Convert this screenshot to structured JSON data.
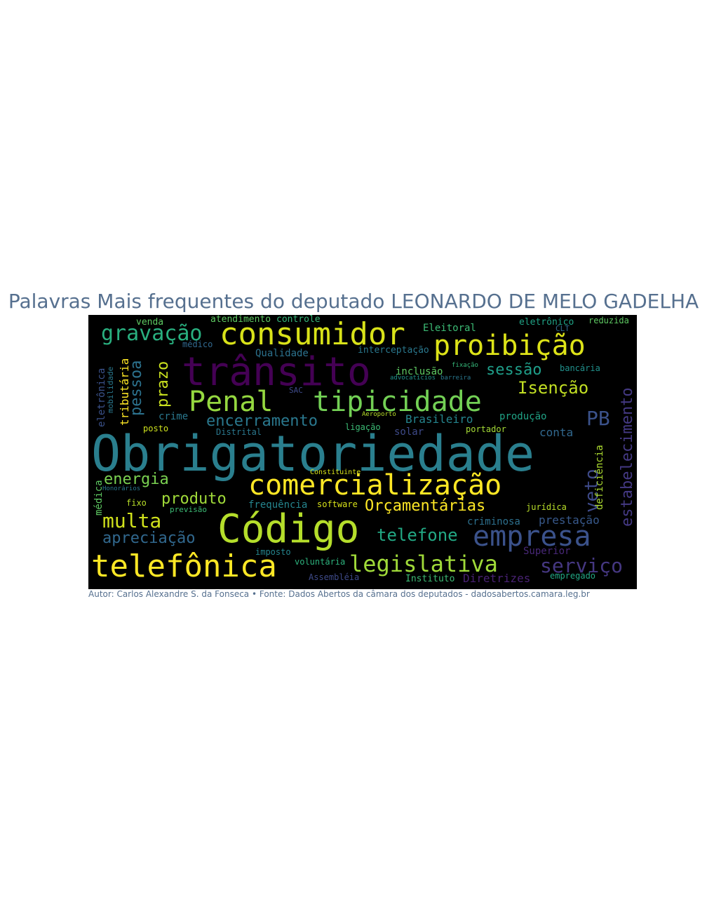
{
  "title": "Palavras Mais frequentes do deputado LEONARDO DE MELO GADELHA",
  "footer": "Autor: Carlos Alexandre S. da Fonseca • Fonte: Dados Abertos da câmara dos deputados - dadosabertos.camara.leg.br",
  "colors": {
    "title": "#56708f",
    "background": "#000000",
    "palette": "viridis"
  },
  "words": [
    {
      "text": "Obrigatoriedade",
      "color": "#2a7f8e"
    },
    {
      "text": "trânsito",
      "color": "#440154"
    },
    {
      "text": "Código",
      "color": "#b5de2b"
    },
    {
      "text": "comercialização",
      "color": "#fde725"
    },
    {
      "text": "telefônica",
      "color": "#fde725"
    },
    {
      "text": "consumidor",
      "color": "#d8e219"
    },
    {
      "text": "proibição",
      "color": "#dde318"
    },
    {
      "text": "tipicidade",
      "color": "#73d055"
    },
    {
      "text": "Penal",
      "color": "#95d840"
    },
    {
      "text": "empresa",
      "color": "#3b528b"
    },
    {
      "text": "legislativa",
      "color": "#a0da39"
    },
    {
      "text": "estabelecimento",
      "color": "#443983"
    },
    {
      "text": "gravação",
      "color": "#29af7f"
    },
    {
      "text": "encerramento",
      "color": "#2a788e"
    },
    {
      "text": "serviço",
      "color": "#453781"
    },
    {
      "text": "Orçamentárias",
      "color": "#fde725"
    },
    {
      "text": "multa",
      "color": "#d0e11c"
    },
    {
      "text": "apreciação",
      "color": "#31688e"
    },
    {
      "text": "telefone",
      "color": "#22a884"
    },
    {
      "text": "energia",
      "color": "#7ad151"
    },
    {
      "text": "produto",
      "color": "#a0da39"
    },
    {
      "text": "veto",
      "color": "#3e4a89"
    },
    {
      "text": "PB",
      "color": "#3b528b"
    },
    {
      "text": "Isenção",
      "color": "#c2df23"
    },
    {
      "text": "sessão",
      "color": "#1f9e89"
    },
    {
      "text": "pessoa",
      "color": "#2c728e"
    },
    {
      "text": "prazo",
      "color": "#cae11f"
    },
    {
      "text": "tributária",
      "color": "#fde725"
    },
    {
      "text": "deficiência",
      "color": "#addc30"
    },
    {
      "text": "Brasileiro",
      "color": "#25858e"
    },
    {
      "text": "prestação",
      "color": "#38598c"
    },
    {
      "text": "Diretrizes",
      "color": "#482173"
    },
    {
      "text": "criminosa",
      "color": "#2d708e"
    },
    {
      "text": "conta",
      "color": "#31688e"
    },
    {
      "text": "produção",
      "color": "#20a386"
    },
    {
      "text": "solar",
      "color": "#3e4a89"
    },
    {
      "text": "portador",
      "color": "#a5db36"
    },
    {
      "text": "ligação",
      "color": "#3cbb75"
    },
    {
      "text": "frequência",
      "color": "#25858e"
    },
    {
      "text": "software",
      "color": "#d8e219"
    },
    {
      "text": "crime",
      "color": "#2a788e"
    },
    {
      "text": "posto",
      "color": "#cde11d"
    },
    {
      "text": "Qualidade",
      "color": "#2c728e"
    },
    {
      "text": "interceptação",
      "color": "#2a788e"
    },
    {
      "text": "Eleitoral",
      "color": "#3cbb75"
    },
    {
      "text": "inclusão",
      "color": "#5ec962"
    },
    {
      "text": "eletrônico",
      "color": "#20a386"
    },
    {
      "text": "reduzida",
      "color": "#5ec962"
    },
    {
      "text": "atendimento",
      "color": "#5ec962"
    },
    {
      "text": "controle",
      "color": "#35b779"
    },
    {
      "text": "venda",
      "color": "#5ec962"
    },
    {
      "text": "médico",
      "color": "#31688e"
    },
    {
      "text": "bancária",
      "color": "#21918c"
    },
    {
      "text": "jurídica",
      "color": "#b8de29"
    },
    {
      "text": "Superior",
      "color": "#482878"
    },
    {
      "text": "empregado",
      "color": "#22a884"
    },
    {
      "text": "Instituto",
      "color": "#3cbb75"
    },
    {
      "text": "Assembléia",
      "color": "#3e4a89"
    },
    {
      "text": "voluntária",
      "color": "#2db27d"
    },
    {
      "text": "imposto",
      "color": "#25858e"
    },
    {
      "text": "Distrital",
      "color": "#2a788e"
    },
    {
      "text": "fixo",
      "color": "#b8de29"
    },
    {
      "text": "médica",
      "color": "#5ec962"
    },
    {
      "text": "eletrônica",
      "color": "#3b528b"
    },
    {
      "text": "mobilidade",
      "color": "#2a788e"
    },
    {
      "text": "previsão",
      "color": "#3cbb75"
    },
    {
      "text": "SAC",
      "color": "#3e4a89"
    },
    {
      "text": "CLT",
      "color": "#31688e"
    },
    {
      "text": "advocatícios",
      "color": "#21918c"
    },
    {
      "text": "barreira",
      "color": "#2a788e"
    },
    {
      "text": "fixação",
      "color": "#35b779"
    },
    {
      "text": "Aeroporto",
      "color": "#b8de29"
    },
    {
      "text": "Constituinte",
      "color": "#d8e219"
    },
    {
      "text": "Honorários",
      "color": "#2a788e"
    }
  ]
}
